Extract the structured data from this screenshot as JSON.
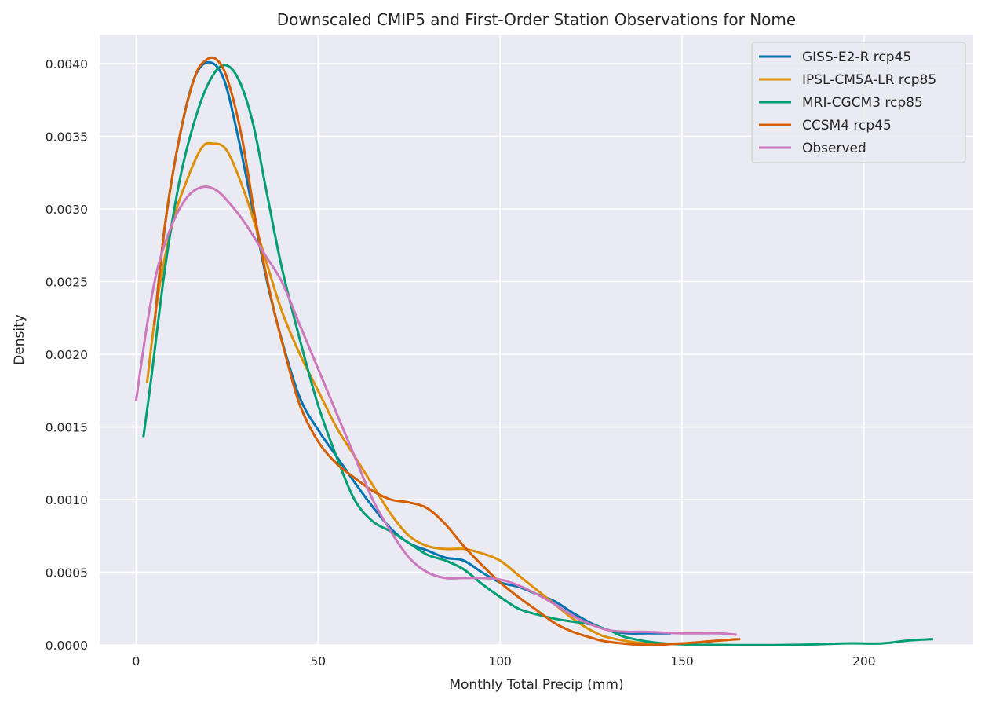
{
  "chart_data": {
    "type": "line",
    "title": "Downscaled CMIP5 and First-Order Station Observations for Nome",
    "xlabel": "Monthly Total Precip (mm)",
    "ylabel": "Density",
    "xlim": [
      -10,
      230
    ],
    "ylim": [
      0,
      0.0042
    ],
    "xticks": [
      0,
      50,
      100,
      150,
      200
    ],
    "xtick_labels": [
      "0",
      "50",
      "100",
      "150",
      "200"
    ],
    "yticks": [
      0,
      0.0005,
      0.001,
      0.0015,
      0.002,
      0.0025,
      0.003,
      0.0035,
      0.004
    ],
    "ytick_labels": [
      "0.0000",
      "0.0005",
      "0.0010",
      "0.0015",
      "0.0020",
      "0.0025",
      "0.0030",
      "0.0035",
      "0.0040"
    ],
    "grid": true,
    "legend_position": "top-right",
    "series": [
      {
        "name": "GISS-E2-R rcp45",
        "color": "#0173b2",
        "points": [
          [
            5,
            0.0022
          ],
          [
            8,
            0.0029
          ],
          [
            12,
            0.0035
          ],
          [
            16,
            0.0039
          ],
          [
            20,
            0.00401
          ],
          [
            24,
            0.0039
          ],
          [
            28,
            0.0035
          ],
          [
            32,
            0.003
          ],
          [
            36,
            0.0025
          ],
          [
            40,
            0.0021
          ],
          [
            45,
            0.0017
          ],
          [
            50,
            0.00148
          ],
          [
            55,
            0.0013
          ],
          [
            60,
            0.00112
          ],
          [
            65,
            0.00095
          ],
          [
            70,
            0.0008
          ],
          [
            75,
            0.0007
          ],
          [
            80,
            0.00065
          ],
          [
            85,
            0.0006
          ],
          [
            90,
            0.00058
          ],
          [
            95,
            0.0005
          ],
          [
            100,
            0.00043
          ],
          [
            105,
            0.0004
          ],
          [
            110,
            0.00035
          ],
          [
            115,
            0.0003
          ],
          [
            120,
            0.00022
          ],
          [
            125,
            0.00015
          ],
          [
            130,
            0.0001
          ],
          [
            135,
            8e-05
          ],
          [
            140,
            8e-05
          ],
          [
            147,
            8e-05
          ]
        ]
      },
      {
        "name": "IPSL-CM5A-LR rcp85",
        "color": "#de8f05",
        "points": [
          [
            3,
            0.0018
          ],
          [
            6,
            0.0024
          ],
          [
            10,
            0.0029
          ],
          [
            14,
            0.0032
          ],
          [
            18,
            0.00342
          ],
          [
            21,
            0.00345
          ],
          [
            25,
            0.0034
          ],
          [
            30,
            0.0031
          ],
          [
            35,
            0.0027
          ],
          [
            40,
            0.0023
          ],
          [
            45,
            0.002
          ],
          [
            50,
            0.00175
          ],
          [
            55,
            0.0015
          ],
          [
            60,
            0.0013
          ],
          [
            65,
            0.0011
          ],
          [
            70,
            0.0009
          ],
          [
            75,
            0.00075
          ],
          [
            80,
            0.00068
          ],
          [
            85,
            0.00066
          ],
          [
            90,
            0.00066
          ],
          [
            95,
            0.00063
          ],
          [
            100,
            0.00058
          ],
          [
            105,
            0.00048
          ],
          [
            110,
            0.00038
          ],
          [
            115,
            0.00028
          ],
          [
            120,
            0.00018
          ],
          [
            125,
            0.0001
          ],
          [
            130,
            5e-05
          ],
          [
            140,
            1e-05
          ],
          [
            150,
            1e-05
          ],
          [
            160,
            3e-05
          ],
          [
            165,
            4e-05
          ]
        ]
      },
      {
        "name": "MRI-CGCM3 rcp85",
        "color": "#029e73",
        "points": [
          [
            2,
            0.00143
          ],
          [
            4,
            0.0018
          ],
          [
            8,
            0.0026
          ],
          [
            12,
            0.0032
          ],
          [
            16,
            0.0036
          ],
          [
            20,
            0.00387
          ],
          [
            24,
            0.00399
          ],
          [
            28,
            0.0039
          ],
          [
            32,
            0.0036
          ],
          [
            36,
            0.0031
          ],
          [
            40,
            0.0026
          ],
          [
            45,
            0.0021
          ],
          [
            50,
            0.00165
          ],
          [
            55,
            0.0013
          ],
          [
            60,
            0.001
          ],
          [
            65,
            0.00085
          ],
          [
            70,
            0.00078
          ],
          [
            75,
            0.0007
          ],
          [
            80,
            0.00062
          ],
          [
            85,
            0.00058
          ],
          [
            90,
            0.00052
          ],
          [
            95,
            0.00042
          ],
          [
            100,
            0.00033
          ],
          [
            105,
            0.00025
          ],
          [
            110,
            0.00021
          ],
          [
            115,
            0.00018
          ],
          [
            120,
            0.00016
          ],
          [
            125,
            0.00014
          ],
          [
            130,
            0.0001
          ],
          [
            135,
            5e-05
          ],
          [
            145,
            1e-05
          ],
          [
            160,
            0
          ],
          [
            180,
            0
          ],
          [
            195,
            1e-05
          ],
          [
            205,
            1e-05
          ],
          [
            212,
            3e-05
          ],
          [
            219,
            4e-05
          ]
        ]
      },
      {
        "name": "CCSM4 rcp45",
        "color": "#d55e00",
        "points": [
          [
            5,
            0.0022
          ],
          [
            8,
            0.0029
          ],
          [
            12,
            0.0035
          ],
          [
            16,
            0.0039
          ],
          [
            19,
            0.00402
          ],
          [
            22,
            0.00403
          ],
          [
            25,
            0.0039
          ],
          [
            29,
            0.0035
          ],
          [
            33,
            0.0029
          ],
          [
            37,
            0.0024
          ],
          [
            41,
            0.002
          ],
          [
            45,
            0.00165
          ],
          [
            50,
            0.0014
          ],
          [
            55,
            0.00125
          ],
          [
            60,
            0.00115
          ],
          [
            65,
            0.00106
          ],
          [
            70,
            0.001
          ],
          [
            75,
            0.00098
          ],
          [
            80,
            0.00094
          ],
          [
            85,
            0.00083
          ],
          [
            90,
            0.00068
          ],
          [
            95,
            0.00055
          ],
          [
            100,
            0.00043
          ],
          [
            105,
            0.00033
          ],
          [
            110,
            0.00024
          ],
          [
            115,
            0.00015
          ],
          [
            120,
            9e-05
          ],
          [
            125,
            5e-05
          ],
          [
            130,
            2e-05
          ],
          [
            140,
            0
          ],
          [
            150,
            1e-05
          ],
          [
            160,
            3e-05
          ],
          [
            166,
            4e-05
          ]
        ]
      },
      {
        "name": "Observed",
        "color": "#cc78bc",
        "points": [
          [
            0,
            0.00168
          ],
          [
            3,
            0.0022
          ],
          [
            6,
            0.0026
          ],
          [
            10,
            0.0029
          ],
          [
            14,
            0.00308
          ],
          [
            18,
            0.00315
          ],
          [
            22,
            0.00313
          ],
          [
            26,
            0.00303
          ],
          [
            30,
            0.0029
          ],
          [
            35,
            0.0027
          ],
          [
            40,
            0.0025
          ],
          [
            45,
            0.0022
          ],
          [
            50,
            0.0019
          ],
          [
            55,
            0.0016
          ],
          [
            60,
            0.0013
          ],
          [
            65,
            0.001
          ],
          [
            70,
            0.00078
          ],
          [
            75,
            0.0006
          ],
          [
            80,
            0.0005
          ],
          [
            85,
            0.00046
          ],
          [
            90,
            0.00046
          ],
          [
            95,
            0.00046
          ],
          [
            100,
            0.00045
          ],
          [
            105,
            0.00041
          ],
          [
            110,
            0.00035
          ],
          [
            115,
            0.00028
          ],
          [
            120,
            0.0002
          ],
          [
            125,
            0.00014
          ],
          [
            130,
            0.0001
          ],
          [
            135,
            9e-05
          ],
          [
            140,
            9e-05
          ],
          [
            150,
            8e-05
          ],
          [
            160,
            8e-05
          ],
          [
            165,
            7e-05
          ]
        ]
      }
    ]
  }
}
